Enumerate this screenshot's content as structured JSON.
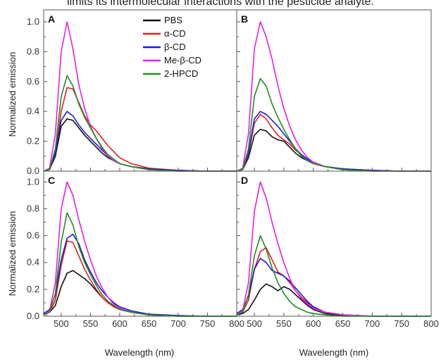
{
  "caption": "limits its intermolecular interactions with the pesticide analyte.",
  "chart_data": {
    "type": "line",
    "layout": "2x2 grid sharing axes",
    "xlabel": "Wavelength (nm)",
    "ylabel": "Normalized emission",
    "xlim": [
      470,
      800
    ],
    "ylim": [
      0,
      1.08
    ],
    "xticks": [
      "500",
      "550",
      "600",
      "650",
      "700",
      "750",
      "800"
    ],
    "yticks": [
      "0.0",
      "0.2",
      "0.4",
      "0.6",
      "0.8",
      "1.0"
    ],
    "grid": false,
    "legend_placement": "top-right of panel A",
    "series_names": [
      "PBS",
      "α-CD",
      "β-CD",
      "Me-β-CD",
      "2-HPCD"
    ],
    "series_colors": [
      "#111111",
      "#e0201b",
      "#1a1ad6",
      "#e61ee6",
      "#228b22"
    ],
    "x": [
      470,
      480,
      490,
      500,
      510,
      520,
      530,
      540,
      550,
      560,
      570,
      580,
      590,
      600,
      620,
      650,
      700,
      750,
      800
    ],
    "panels": [
      {
        "letter": "A",
        "series": [
          {
            "name": "PBS",
            "values": [
              0.0,
              0.01,
              0.1,
              0.3,
              0.35,
              0.34,
              0.29,
              0.24,
              0.2,
              0.16,
              0.12,
              0.09,
              0.07,
              0.05,
              0.03,
              0.015,
              0.005,
              0.0,
              0.0
            ]
          },
          {
            "name": "α-CD",
            "values": [
              0.0,
              0.01,
              0.12,
              0.4,
              0.56,
              0.55,
              0.46,
              0.37,
              0.31,
              0.27,
              0.22,
              0.17,
              0.13,
              0.09,
              0.05,
              0.02,
              0.005,
              0.0,
              0.0
            ]
          },
          {
            "name": "β-CD",
            "values": [
              0.0,
              0.01,
              0.12,
              0.34,
              0.4,
              0.37,
              0.31,
              0.26,
              0.22,
              0.18,
              0.14,
              0.1,
              0.07,
              0.05,
              0.03,
              0.015,
              0.005,
              0.0,
              0.0
            ]
          },
          {
            "name": "Me-β-CD",
            "values": [
              0.0,
              0.02,
              0.25,
              0.8,
              1.0,
              0.82,
              0.58,
              0.42,
              0.3,
              0.22,
              0.15,
              0.1,
              0.07,
              0.05,
              0.03,
              0.01,
              0.0,
              0.0,
              0.0
            ]
          },
          {
            "name": "2-HPCD",
            "values": [
              0.0,
              0.01,
              0.15,
              0.5,
              0.64,
              0.57,
              0.45,
              0.36,
              0.29,
              0.22,
              0.16,
              0.11,
              0.08,
              0.05,
              0.03,
              0.01,
              0.0,
              0.0,
              0.0
            ]
          }
        ]
      },
      {
        "letter": "B",
        "series": [
          {
            "name": "PBS",
            "values": [
              0.0,
              0.01,
              0.09,
              0.24,
              0.28,
              0.27,
              0.23,
              0.21,
              0.2,
              0.16,
              0.12,
              0.09,
              0.07,
              0.05,
              0.03,
              0.015,
              0.005,
              0.0,
              0.0
            ]
          },
          {
            "name": "α-CD",
            "values": [
              0.0,
              0.01,
              0.11,
              0.32,
              0.38,
              0.35,
              0.29,
              0.24,
              0.21,
              0.18,
              0.14,
              0.11,
              0.08,
              0.06,
              0.03,
              0.015,
              0.005,
              0.0,
              0.0
            ]
          },
          {
            "name": "β-CD",
            "values": [
              0.0,
              0.01,
              0.12,
              0.35,
              0.4,
              0.38,
              0.34,
              0.3,
              0.25,
              0.2,
              0.15,
              0.11,
              0.08,
              0.06,
              0.03,
              0.015,
              0.005,
              0.0,
              0.0
            ]
          },
          {
            "name": "Me-β-CD",
            "values": [
              0.0,
              0.02,
              0.25,
              0.82,
              1.0,
              0.9,
              0.75,
              0.57,
              0.42,
              0.3,
              0.21,
              0.14,
              0.09,
              0.06,
              0.03,
              0.01,
              0.0,
              0.0,
              0.0
            ]
          },
          {
            "name": "2-HPCD",
            "values": [
              0.0,
              0.01,
              0.15,
              0.5,
              0.62,
              0.57,
              0.45,
              0.36,
              0.28,
              0.21,
              0.15,
              0.1,
              0.07,
              0.05,
              0.03,
              0.01,
              0.0,
              0.0,
              0.0
            ]
          }
        ]
      },
      {
        "letter": "C",
        "series": [
          {
            "name": "PBS",
            "values": [
              0.01,
              0.03,
              0.08,
              0.22,
              0.32,
              0.34,
              0.31,
              0.28,
              0.24,
              0.19,
              0.14,
              0.1,
              0.07,
              0.05,
              0.03,
              0.01,
              0.0,
              0.0,
              0.0
            ]
          },
          {
            "name": "α-CD",
            "values": [
              0.01,
              0.03,
              0.12,
              0.38,
              0.56,
              0.55,
              0.45,
              0.35,
              0.27,
              0.2,
              0.14,
              0.1,
              0.07,
              0.05,
              0.03,
              0.01,
              0.0,
              0.0,
              0.0
            ]
          },
          {
            "name": "β-CD",
            "values": [
              0.02,
              0.05,
              0.16,
              0.42,
              0.58,
              0.61,
              0.54,
              0.42,
              0.33,
              0.25,
              0.19,
              0.14,
              0.1,
              0.07,
              0.04,
              0.015,
              0.005,
              0.0,
              0.0
            ]
          },
          {
            "name": "Me-β-CD",
            "values": [
              0.01,
              0.04,
              0.25,
              0.8,
              1.0,
              0.9,
              0.72,
              0.56,
              0.42,
              0.3,
              0.21,
              0.14,
              0.09,
              0.06,
              0.03,
              0.01,
              0.0,
              0.0,
              0.0
            ]
          },
          {
            "name": "2-HPCD",
            "values": [
              0.01,
              0.03,
              0.17,
              0.55,
              0.77,
              0.68,
              0.52,
              0.4,
              0.31,
              0.23,
              0.16,
              0.11,
              0.08,
              0.05,
              0.03,
              0.01,
              0.0,
              0.0,
              0.0
            ]
          }
        ]
      },
      {
        "letter": "D",
        "series": [
          {
            "name": "PBS",
            "values": [
              0.01,
              0.02,
              0.05,
              0.12,
              0.2,
              0.24,
              0.22,
              0.19,
              0.22,
              0.2,
              0.16,
              0.12,
              0.08,
              0.05,
              0.02,
              0.005,
              0.0,
              0.0,
              0.0
            ]
          },
          {
            "name": "α-CD",
            "values": [
              0.01,
              0.03,
              0.12,
              0.35,
              0.48,
              0.51,
              0.42,
              0.33,
              0.3,
              0.25,
              0.19,
              0.14,
              0.1,
              0.07,
              0.03,
              0.01,
              0.0,
              0.0,
              0.0
            ]
          },
          {
            "name": "β-CD",
            "values": [
              0.02,
              0.05,
              0.15,
              0.35,
              0.43,
              0.4,
              0.34,
              0.32,
              0.3,
              0.26,
              0.21,
              0.16,
              0.11,
              0.07,
              0.03,
              0.01,
              0.0,
              0.0,
              0.0
            ]
          },
          {
            "name": "Me-β-CD",
            "values": [
              0.01,
              0.04,
              0.25,
              0.78,
              1.0,
              0.88,
              0.7,
              0.54,
              0.4,
              0.28,
              0.19,
              0.13,
              0.09,
              0.06,
              0.03,
              0.01,
              0.0,
              0.0,
              0.0
            ]
          },
          {
            "name": "2-HPCD",
            "values": [
              0.01,
              0.03,
              0.16,
              0.45,
              0.6,
              0.5,
              0.36,
              0.25,
              0.17,
              0.11,
              0.07,
              0.05,
              0.03,
              0.02,
              0.01,
              0.0,
              0.0,
              0.0,
              0.0
            ]
          }
        ]
      }
    ]
  }
}
